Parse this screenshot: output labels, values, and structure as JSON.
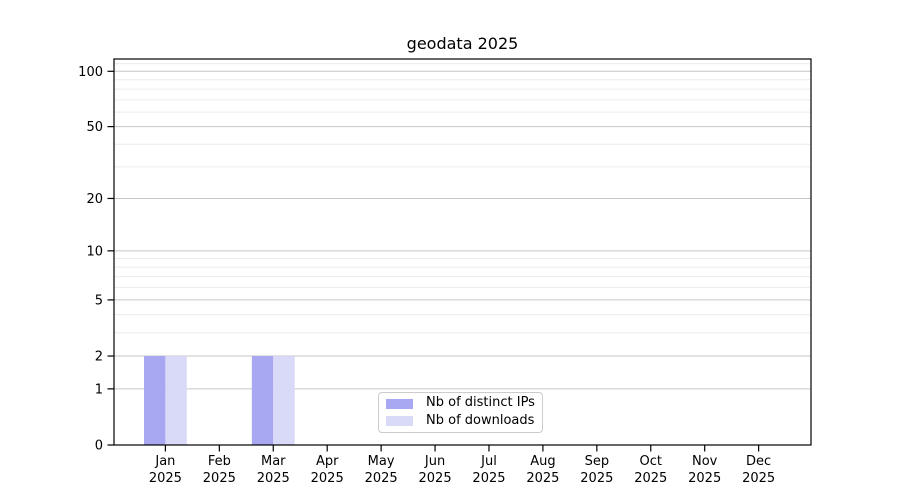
{
  "figure": {
    "title": "geodata 2025"
  },
  "chart_data": {
    "type": "bar",
    "title": "geodata 2025",
    "categories": [
      "Jan",
      "Feb",
      "Mar",
      "Apr",
      "May",
      "Jun",
      "Jul",
      "Aug",
      "Sep",
      "Oct",
      "Nov",
      "Dec"
    ],
    "category_second_line": "2025",
    "series": [
      {
        "name": "Nb of distinct IPs",
        "color": "#a7a7f2",
        "values": [
          2,
          0,
          2,
          0,
          0,
          0,
          0,
          0,
          0,
          0,
          0,
          0
        ]
      },
      {
        "name": "Nb of downloads",
        "color": "#d9d9f8",
        "values": [
          2,
          0,
          2,
          0,
          0,
          0,
          0,
          0,
          0,
          0,
          0,
          0
        ]
      }
    ],
    "xlabel": "",
    "ylabel": "",
    "yscale": "log1p",
    "ylim": [
      0,
      116
    ],
    "y_major_ticks": [
      0,
      1,
      2,
      5,
      10,
      20,
      50,
      100
    ],
    "y_minor_gridlines": [
      3,
      4,
      6,
      7,
      8,
      9,
      30,
      40,
      60,
      70,
      80,
      90,
      110
    ],
    "grid": true,
    "legend_position": "lower center"
  },
  "colors": {
    "major_gridline": "#c6c6c6",
    "minor_gridline": "#ececec",
    "spine": "#000000",
    "tick_label": "#000000",
    "legend_border": "#cccccc"
  }
}
